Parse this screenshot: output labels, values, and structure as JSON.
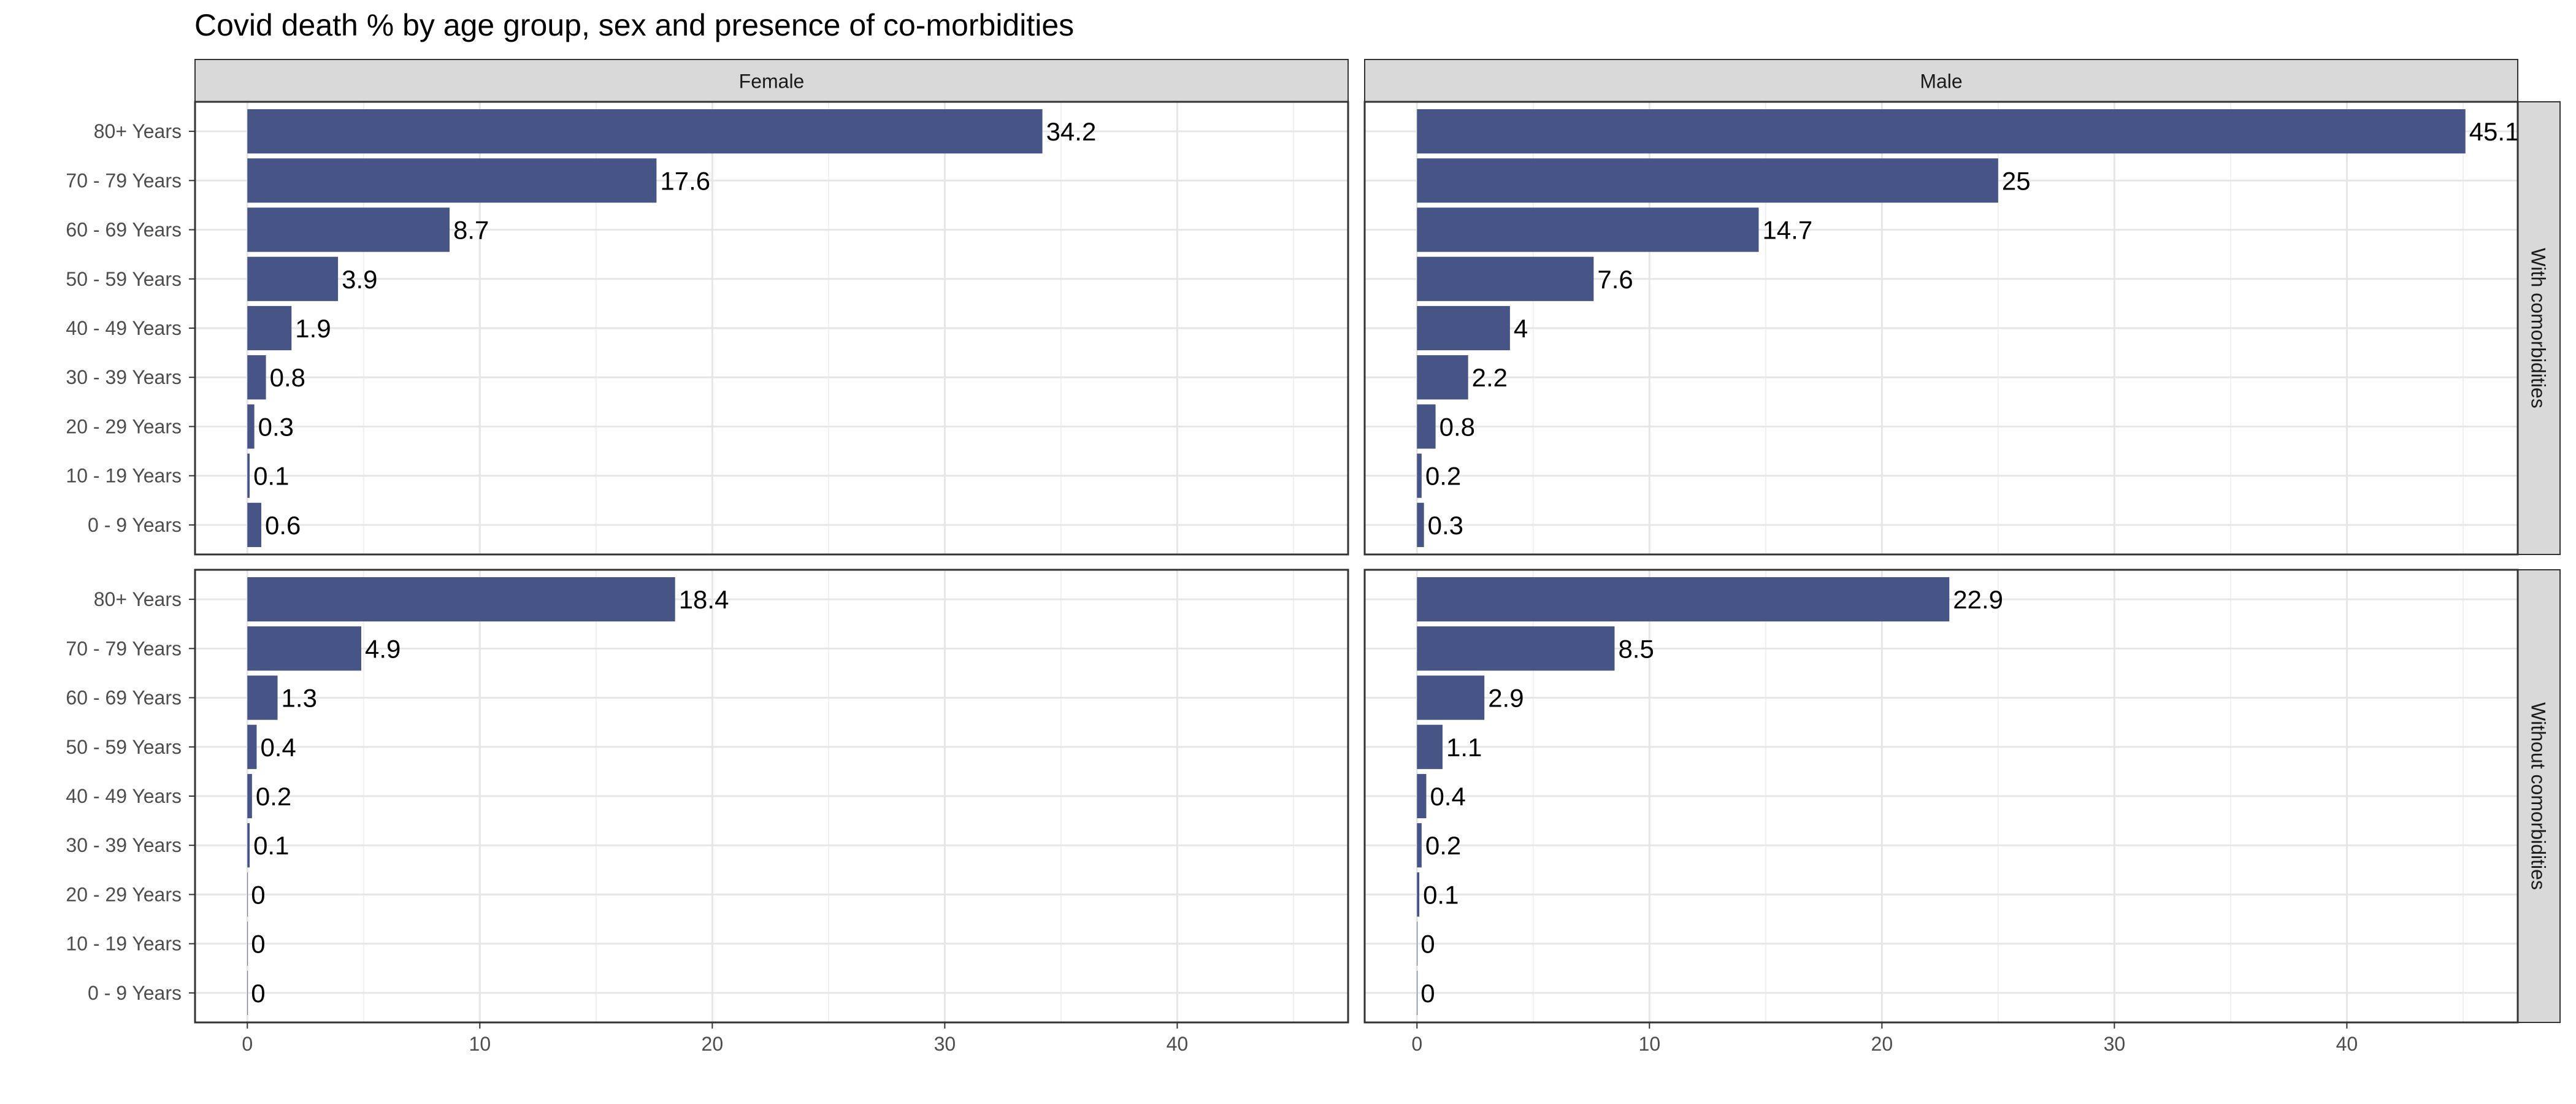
{
  "chart_data": {
    "type": "bar",
    "orientation": "horizontal",
    "title": "Covid death % by age group, sex and presence of co-morbidities",
    "xlabel": "",
    "ylabel": "",
    "xlim": [
      -2.25,
      47.35
    ],
    "x_ticks": [
      0,
      10,
      20,
      30,
      40
    ],
    "grid": true,
    "categories": [
      "80+ Years",
      "70 - 79 Years",
      "60 - 69 Years",
      "50 - 59 Years",
      "40 - 49 Years",
      "30 - 39 Years",
      "20 - 29 Years",
      "10 - 19 Years",
      "0 - 9 Years"
    ],
    "facet_columns": [
      "Female",
      "Male"
    ],
    "facet_rows": [
      "With comorbidities",
      "Without comorbidities"
    ],
    "bar_color": "#465586",
    "panels": [
      {
        "column": "Female",
        "row": "With comorbidities",
        "values": [
          34.2,
          17.6,
          8.7,
          3.9,
          1.9,
          0.8,
          0.3,
          0.1,
          0.6
        ]
      },
      {
        "column": "Male",
        "row": "With comorbidities",
        "values": [
          45.1,
          25,
          14.7,
          7.6,
          4,
          2.2,
          0.8,
          0.2,
          0.3
        ]
      },
      {
        "column": "Female",
        "row": "Without comorbidities",
        "values": [
          18.4,
          4.9,
          1.3,
          0.4,
          0.2,
          0.1,
          0,
          0,
          0
        ]
      },
      {
        "column": "Male",
        "row": "Without comorbidities",
        "values": [
          22.9,
          8.5,
          2.9,
          1.1,
          0.4,
          0.2,
          0.1,
          0,
          0
        ]
      }
    ]
  }
}
